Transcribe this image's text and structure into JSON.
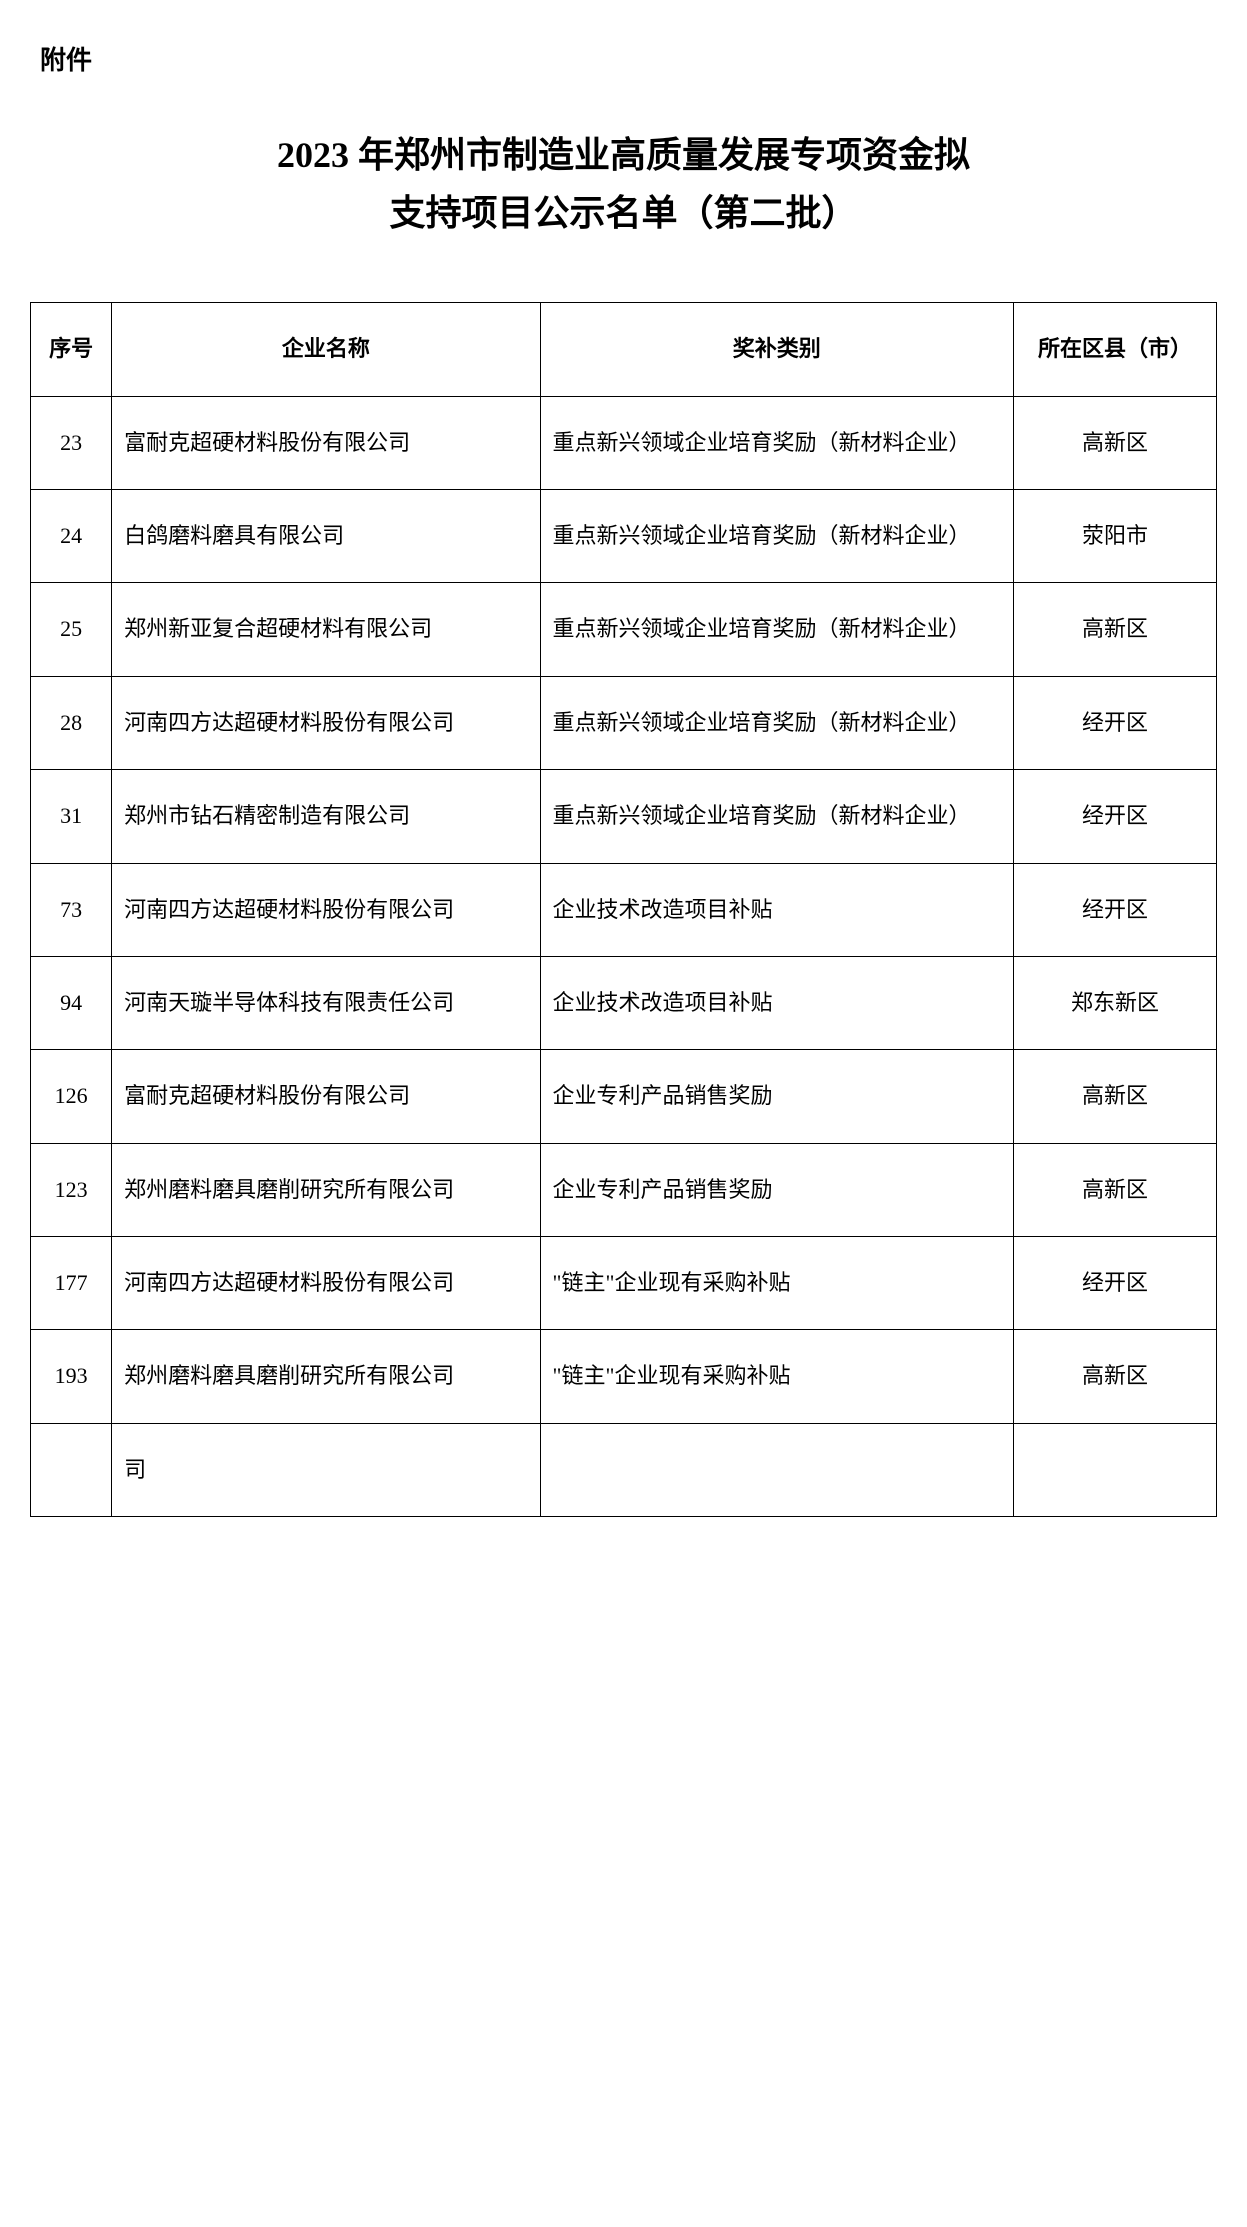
{
  "attachment_label": "附件",
  "title_line1": "2023 年郑州市制造业高质量发展专项资金拟",
  "title_line2": "支持项目公示名单（第二批）",
  "table": {
    "headers": {
      "seq": "序号",
      "company": "企业名称",
      "category": "奖补类别",
      "district": "所在区县（市）"
    },
    "rows": [
      {
        "seq": "23",
        "company": "富耐克超硬材料股份有限公司",
        "category": "重点新兴领域企业培育奖励（新材料企业）",
        "district": "高新区"
      },
      {
        "seq": "24",
        "company": "白鸽磨料磨具有限公司",
        "category": "重点新兴领域企业培育奖励（新材料企业）",
        "district": "荥阳市"
      },
      {
        "seq": "25",
        "company": "郑州新亚复合超硬材料有限公司",
        "category": "重点新兴领域企业培育奖励（新材料企业）",
        "district": "高新区"
      },
      {
        "seq": "28",
        "company": "河南四方达超硬材料股份有限公司",
        "category": "重点新兴领域企业培育奖励（新材料企业）",
        "district": "经开区"
      },
      {
        "seq": "31",
        "company": "郑州市钻石精密制造有限公司",
        "category": "重点新兴领域企业培育奖励（新材料企业）",
        "district": "经开区"
      },
      {
        "seq": "73",
        "company": "河南四方达超硬材料股份有限公司",
        "category": "企业技术改造项目补贴",
        "district": "经开区"
      },
      {
        "seq": "94",
        "company": "河南天璇半导体科技有限责任公司",
        "category": "企业技术改造项目补贴",
        "district": "郑东新区"
      },
      {
        "seq": "126",
        "company": "富耐克超硬材料股份有限公司",
        "category": "企业专利产品销售奖励",
        "district": "高新区"
      },
      {
        "seq": "123",
        "company": "郑州磨料磨具磨削研究所有限公司",
        "category": "企业专利产品销售奖励",
        "district": "高新区"
      },
      {
        "seq": "177",
        "company": "河南四方达超硬材料股份有限公司",
        "category": "\"链主\"企业现有采购补贴",
        "district": "经开区"
      },
      {
        "seq": "193",
        "company": "郑州磨料磨具磨削研究所有限公司",
        "category": "\"链主\"企业现有采购补贴",
        "district": "高新区"
      }
    ],
    "last_row": {
      "seq": "",
      "company": "司",
      "category": "",
      "district": ""
    }
  }
}
